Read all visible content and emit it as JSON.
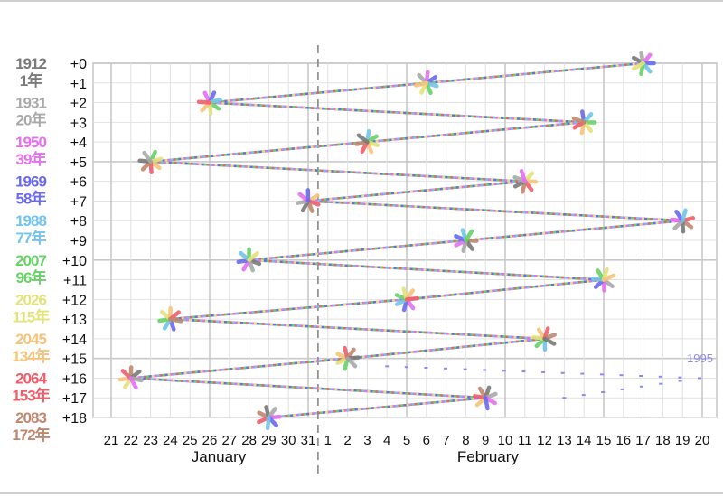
{
  "chart_data": {
    "type": "line",
    "title": "",
    "xlabel": "",
    "ylabel": "",
    "x_tick_labels": [
      "21",
      "22",
      "23",
      "24",
      "25",
      "26",
      "27",
      "28",
      "29",
      "30",
      "31",
      "1",
      "2",
      "3",
      "4",
      "5",
      "6",
      "7",
      "8",
      "9",
      "10",
      "11",
      "12",
      "13",
      "14",
      "15",
      "16",
      "17",
      "18",
      "19",
      "20"
    ],
    "months": [
      "January",
      "February"
    ],
    "y_labels": [
      "+0",
      "+1",
      "+2",
      "+3",
      "+4",
      "+5",
      "+6",
      "+7",
      "+8",
      "+9",
      "+10",
      "+11",
      "+12",
      "+13",
      "+14",
      "+15",
      "+16",
      "+17",
      "+18"
    ],
    "eras": [
      {
        "year": "1912",
        "era": "1年",
        "color": "#7a7a7a"
      },
      {
        "year": "1931",
        "era": "20年",
        "color": "#a9a9a9"
      },
      {
        "year": "1950",
        "era": "39年",
        "color": "#e66ff0"
      },
      {
        "year": "1969",
        "era": "58年",
        "color": "#6a6af0"
      },
      {
        "year": "1988",
        "era": "77年",
        "color": "#72c4ea"
      },
      {
        "year": "2007",
        "era": "96年",
        "color": "#66d266"
      },
      {
        "year": "2026",
        "era": "115年",
        "color": "#e3e37a"
      },
      {
        "year": "2045",
        "era": "134年",
        "color": "#f7c37a"
      },
      {
        "year": "2064",
        "era": "153年",
        "color": "#f05e6a"
      },
      {
        "year": "2083",
        "era": "172年",
        "color": "#c08870"
      }
    ],
    "x_range": [
      "January 21",
      "February 20"
    ],
    "y_range": [
      0,
      18
    ],
    "divider_at": "January 31 / February 1",
    "series": [
      {
        "values": [
          {
            "year_offset": 0,
            "date": "February 17"
          },
          {
            "year_offset": 1,
            "date": "February 6"
          },
          {
            "year_offset": 2,
            "date": "January 26"
          },
          {
            "year_offset": 3,
            "date": "February 14"
          },
          {
            "year_offset": 4,
            "date": "February 3"
          },
          {
            "year_offset": 5,
            "date": "January 23"
          },
          {
            "year_offset": 6,
            "date": "February 11"
          },
          {
            "year_offset": 7,
            "date": "January 31"
          },
          {
            "year_offset": 8,
            "date": "February 19"
          },
          {
            "year_offset": 9,
            "date": "February 8"
          },
          {
            "year_offset": 10,
            "date": "January 28"
          },
          {
            "year_offset": 11,
            "date": "February 15"
          },
          {
            "year_offset": 12,
            "date": "February 5"
          },
          {
            "year_offset": 13,
            "date": "January 24"
          },
          {
            "year_offset": 14,
            "date": "February 12"
          },
          {
            "year_offset": 15,
            "date": "February 2"
          },
          {
            "year_offset": 16,
            "date": "January 22"
          },
          {
            "year_offset": 17,
            "date": "February 9"
          },
          {
            "year_offset": 18,
            "date": "January 29"
          }
        ]
      }
    ],
    "annotation": "1995",
    "grid": true
  }
}
